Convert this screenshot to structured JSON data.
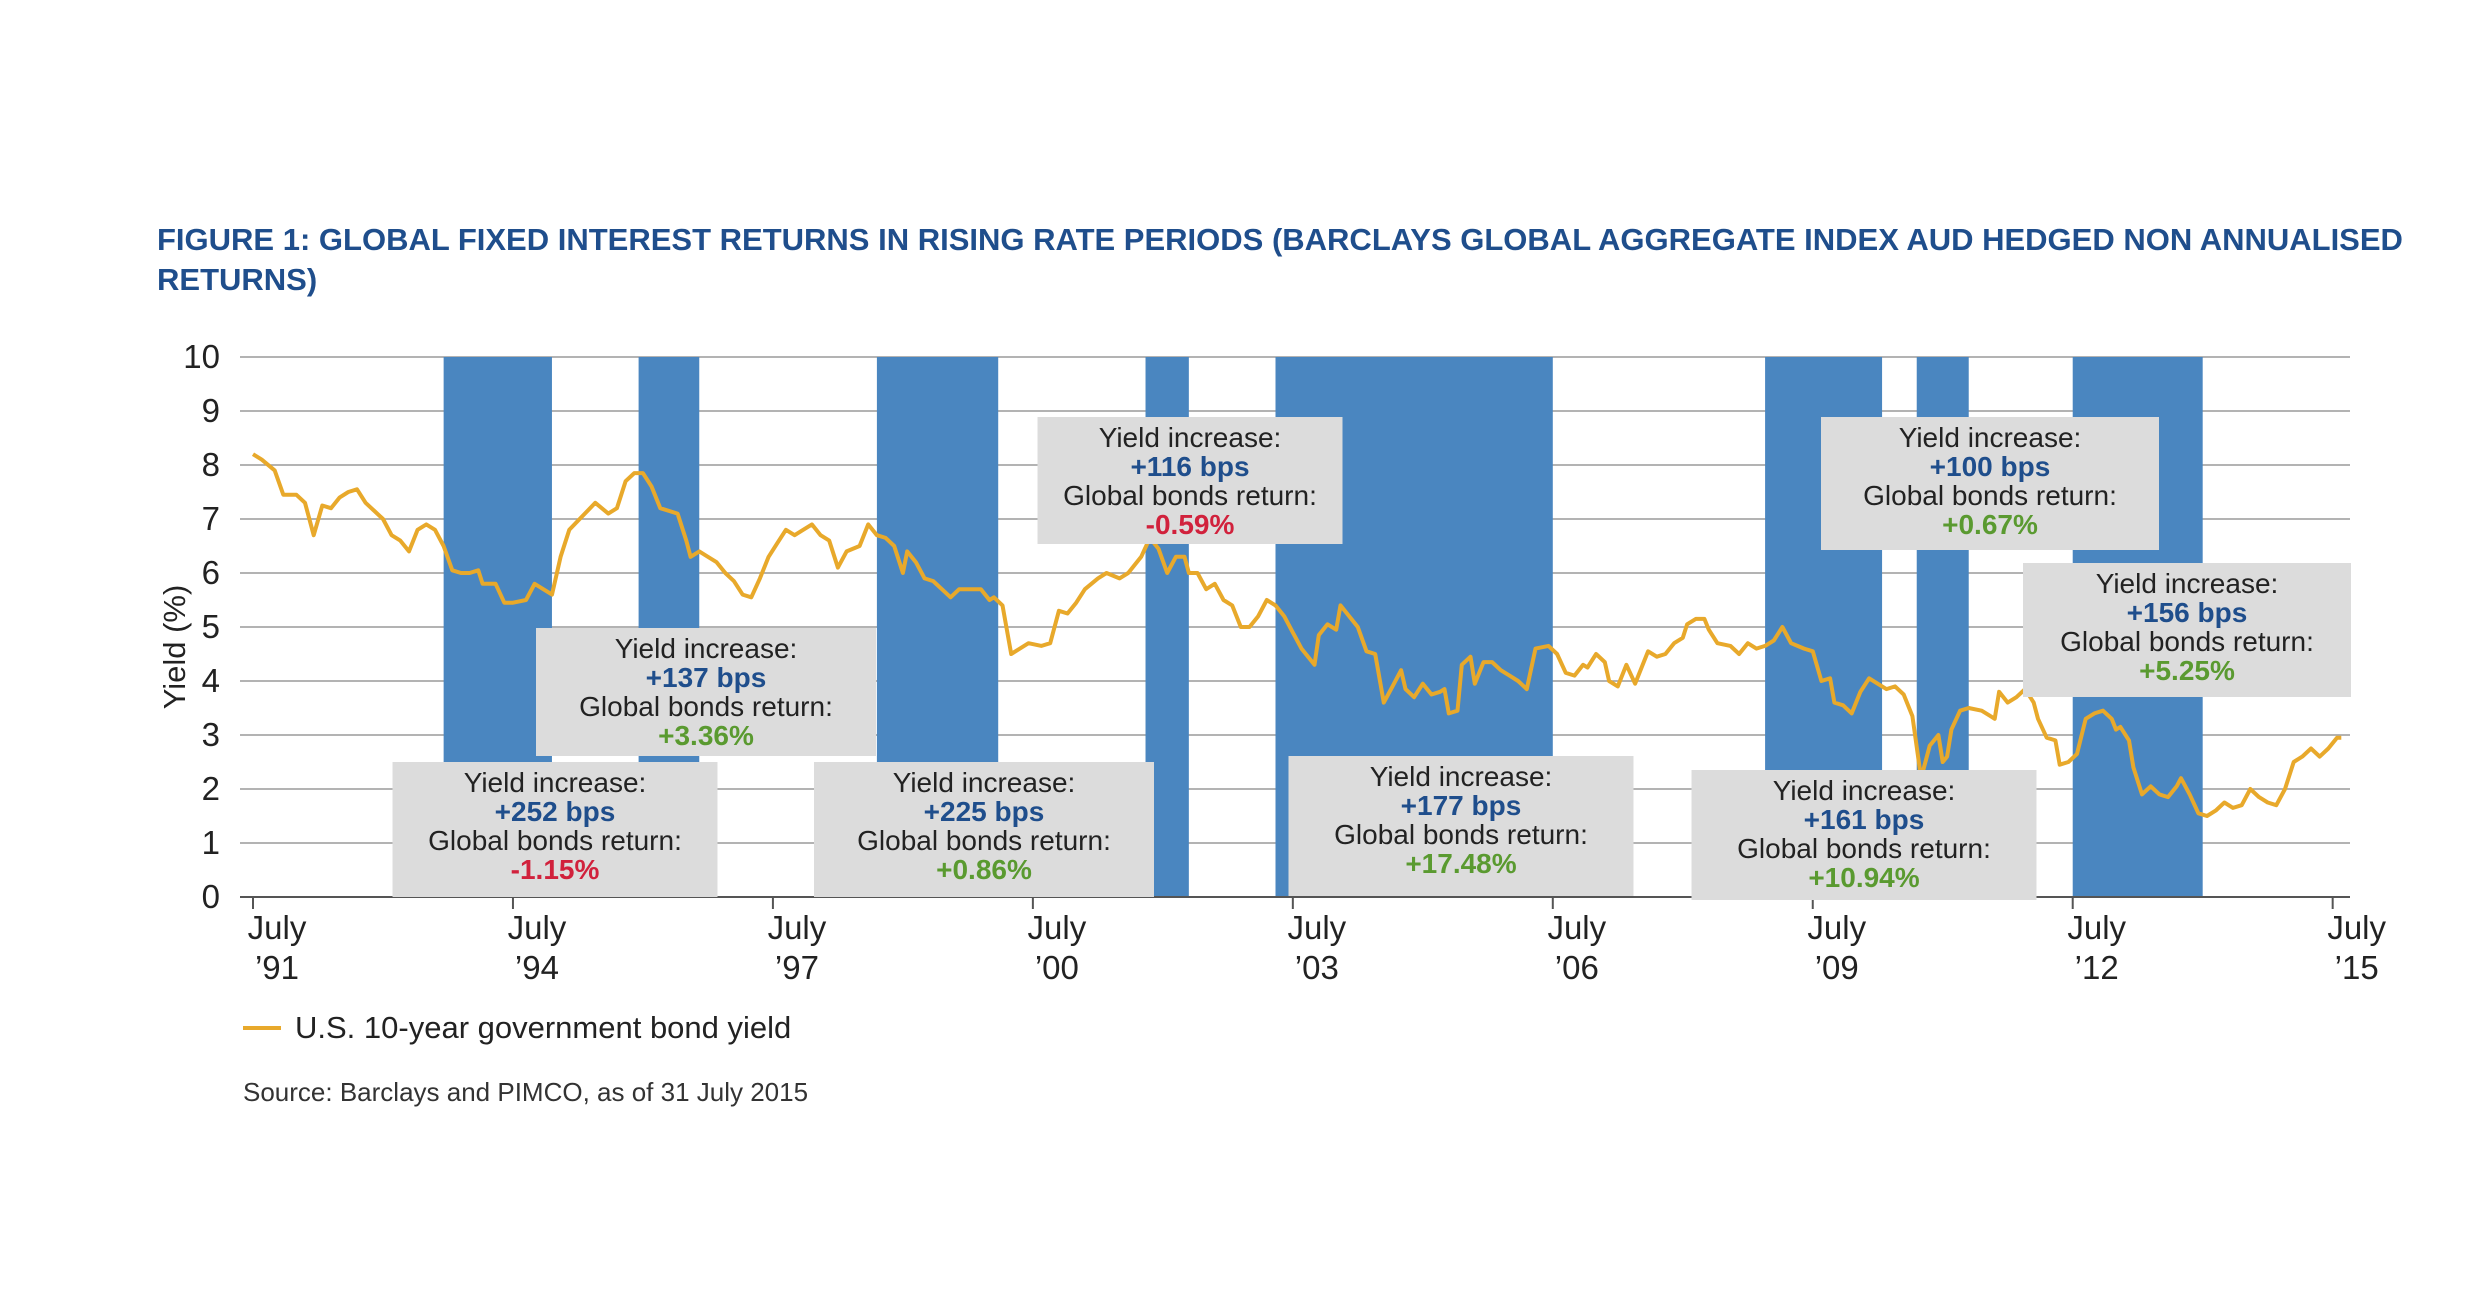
{
  "title": "FIGURE 1: GLOBAL FIXED INTEREST RETURNS IN RISING RATE PERIODS (BARCLAYS GLOBAL AGGREGATE INDEX AUD HEDGED NON ANNUALISED RETURNS)",
  "legend_label": "U.S. 10-year government bond yield",
  "source": "Source: Barclays and PIMCO, as of 31 July 2015",
  "colors": {
    "line": "#e8a92b",
    "band": "#4a86c0",
    "box": "#dcdcdc",
    "bps": "#1f4e8c",
    "positive": "#5a9a30",
    "negative": "#d1213c",
    "grid": "#9a9a9a"
  },
  "chart_data": {
    "type": "line",
    "ylabel": "Yield (%)",
    "xlabel": "",
    "ylim": [
      0,
      10
    ],
    "yticks": [
      0,
      1,
      2,
      3,
      4,
      5,
      6,
      7,
      8,
      9,
      10
    ],
    "xlim": [
      1991.5,
      2015.6
    ],
    "xticks": [
      {
        "x": 1991.5,
        "line1": "July",
        "line2": "’91"
      },
      {
        "x": 1994.5,
        "line1": "July",
        "line2": "’94"
      },
      {
        "x": 1997.5,
        "line1": "July",
        "line2": "’97"
      },
      {
        "x": 2000.5,
        "line1": "July",
        "line2": "’00"
      },
      {
        "x": 2003.5,
        "line1": "July",
        "line2": "’03"
      },
      {
        "x": 2006.5,
        "line1": "July",
        "line2": "’06"
      },
      {
        "x": 2009.5,
        "line1": "July",
        "line2": "’09"
      },
      {
        "x": 2012.5,
        "line1": "July",
        "line2": "’12"
      },
      {
        "x": 2015.5,
        "line1": "July",
        "line2": "’15"
      }
    ],
    "grid": true,
    "legend": "bottom-left",
    "rising_rate_periods": [
      {
        "start": 1993.7,
        "end": 1994.95,
        "yield_increase": "+252 bps",
        "global_bonds_return": "-1.15%",
        "sign": "negative"
      },
      {
        "start": 1995.95,
        "end": 1996.65,
        "yield_increase": "+137 bps",
        "global_bonds_return": "+3.36%",
        "sign": "positive"
      },
      {
        "start": 1998.7,
        "end": 2000.1,
        "yield_increase": "+225 bps",
        "global_bonds_return": "+0.86%",
        "sign": "positive"
      },
      {
        "start": 2001.8,
        "end": 2002.3,
        "yield_increase": "+116 bps",
        "global_bonds_return": "-0.59%",
        "sign": "negative"
      },
      {
        "start": 2003.3,
        "end": 2006.5,
        "yield_increase": "+177 bps",
        "global_bonds_return": "+17.48%",
        "sign": "positive"
      },
      {
        "start": 2008.95,
        "end": 2010.3,
        "yield_increase": "+161 bps",
        "global_bonds_return": "+10.94%",
        "sign": "positive"
      },
      {
        "start": 2010.7,
        "end": 2011.3,
        "yield_increase": "+100 bps",
        "global_bonds_return": "+0.67%",
        "sign": "positive"
      },
      {
        "start": 2012.5,
        "end": 2014.0,
        "yield_increase": "+156 bps",
        "global_bonds_return": "+5.25%",
        "sign": "positive"
      }
    ],
    "annotation_labels": {
      "yield_increase": "Yield increase:",
      "global_bonds_return": "Global bonds return:"
    },
    "series": [
      {
        "name": "U.S. 10-year government bond yield",
        "points": [
          [
            1991.5,
            8.2
          ],
          [
            1991.6,
            8.1
          ],
          [
            1991.75,
            7.9
          ],
          [
            1991.85,
            7.45
          ],
          [
            1992.0,
            7.45
          ],
          [
            1992.1,
            7.3
          ],
          [
            1992.2,
            6.7
          ],
          [
            1992.3,
            7.25
          ],
          [
            1992.4,
            7.2
          ],
          [
            1992.5,
            7.4
          ],
          [
            1992.6,
            7.5
          ],
          [
            1992.7,
            7.55
          ],
          [
            1992.8,
            7.3
          ],
          [
            1992.9,
            7.15
          ],
          [
            1993.0,
            7.0
          ],
          [
            1993.1,
            6.7
          ],
          [
            1993.2,
            6.6
          ],
          [
            1993.3,
            6.4
          ],
          [
            1993.4,
            6.8
          ],
          [
            1993.5,
            6.9
          ],
          [
            1993.6,
            6.8
          ],
          [
            1993.7,
            6.5
          ],
          [
            1993.8,
            6.05
          ],
          [
            1993.9,
            6.0
          ],
          [
            1994.0,
            6.0
          ],
          [
            1994.1,
            6.05
          ],
          [
            1994.15,
            5.8
          ],
          [
            1994.3,
            5.8
          ],
          [
            1994.4,
            5.45
          ],
          [
            1994.5,
            5.45
          ],
          [
            1994.65,
            5.5
          ],
          [
            1994.75,
            5.8
          ],
          [
            1994.85,
            5.7
          ],
          [
            1994.95,
            5.6
          ],
          [
            1995.05,
            6.3
          ],
          [
            1995.15,
            6.8
          ],
          [
            1995.3,
            7.05
          ],
          [
            1995.45,
            7.3
          ],
          [
            1995.6,
            7.1
          ],
          [
            1995.7,
            7.2
          ],
          [
            1995.8,
            7.7
          ],
          [
            1995.9,
            7.85
          ],
          [
            1996.0,
            7.85
          ],
          [
            1996.1,
            7.6
          ],
          [
            1996.2,
            7.2
          ],
          [
            1996.3,
            7.15
          ],
          [
            1996.4,
            7.1
          ],
          [
            1996.5,
            6.6
          ],
          [
            1996.55,
            6.3
          ],
          [
            1996.65,
            6.4
          ],
          [
            1996.75,
            6.3
          ],
          [
            1996.85,
            6.2
          ],
          [
            1996.95,
            6.0
          ],
          [
            1997.05,
            5.85
          ],
          [
            1997.15,
            5.6
          ],
          [
            1997.25,
            5.55
          ],
          [
            1997.35,
            5.9
          ],
          [
            1997.45,
            6.3
          ],
          [
            1997.55,
            6.55
          ],
          [
            1997.65,
            6.8
          ],
          [
            1997.75,
            6.7
          ],
          [
            1997.85,
            6.8
          ],
          [
            1997.95,
            6.9
          ],
          [
            1998.05,
            6.7
          ],
          [
            1998.15,
            6.6
          ],
          [
            1998.25,
            6.1
          ],
          [
            1998.35,
            6.4
          ],
          [
            1998.5,
            6.5
          ],
          [
            1998.6,
            6.9
          ],
          [
            1998.7,
            6.7
          ],
          [
            1998.8,
            6.65
          ],
          [
            1998.9,
            6.5
          ],
          [
            1999.0,
            6.0
          ],
          [
            1999.05,
            6.4
          ],
          [
            1999.15,
            6.2
          ],
          [
            1999.25,
            5.9
          ],
          [
            1999.35,
            5.85
          ],
          [
            1999.45,
            5.7
          ],
          [
            1999.55,
            5.55
          ],
          [
            1999.65,
            5.7
          ],
          [
            1999.8,
            5.7
          ],
          [
            1999.9,
            5.7
          ],
          [
            2000.0,
            5.5
          ],
          [
            2000.05,
            5.55
          ],
          [
            2000.15,
            5.4
          ],
          [
            2000.25,
            4.5
          ],
          [
            2000.35,
            4.6
          ],
          [
            2000.45,
            4.7
          ],
          [
            2000.6,
            4.65
          ],
          [
            2000.7,
            4.7
          ],
          [
            2000.8,
            5.3
          ],
          [
            2000.9,
            5.25
          ],
          [
            2001.0,
            5.45
          ],
          [
            2001.1,
            5.7
          ],
          [
            2001.25,
            5.9
          ],
          [
            2001.35,
            6.0
          ],
          [
            2001.5,
            5.9
          ],
          [
            2001.6,
            6.0
          ],
          [
            2001.75,
            6.3
          ],
          [
            2001.85,
            6.65
          ],
          [
            2001.95,
            6.45
          ],
          [
            2002.05,
            6.0
          ],
          [
            2002.15,
            6.3
          ],
          [
            2002.25,
            6.3
          ],
          [
            2002.3,
            6.0
          ],
          [
            2002.4,
            6.0
          ],
          [
            2002.5,
            5.7
          ],
          [
            2002.6,
            5.8
          ],
          [
            2002.7,
            5.5
          ],
          [
            2002.8,
            5.4
          ],
          [
            2002.9,
            5.0
          ],
          [
            2003.0,
            5.0
          ],
          [
            2003.1,
            5.2
          ],
          [
            2003.2,
            5.5
          ],
          [
            2003.3,
            5.4
          ],
          [
            2003.4,
            5.2
          ],
          [
            2003.5,
            4.9
          ],
          [
            2003.6,
            4.6
          ],
          [
            2003.75,
            4.3
          ],
          [
            2003.8,
            4.85
          ],
          [
            2003.9,
            5.05
          ],
          [
            2004.0,
            4.95
          ],
          [
            2004.05,
            5.4
          ],
          [
            2004.15,
            5.2
          ],
          [
            2004.25,
            5.0
          ],
          [
            2004.35,
            4.55
          ],
          [
            2004.45,
            4.5
          ],
          [
            2004.55,
            3.6
          ],
          [
            2004.65,
            3.9
          ],
          [
            2004.75,
            4.2
          ],
          [
            2004.8,
            3.85
          ],
          [
            2004.9,
            3.7
          ],
          [
            2005.0,
            3.95
          ],
          [
            2005.1,
            3.75
          ],
          [
            2005.2,
            3.8
          ],
          [
            2005.25,
            3.85
          ],
          [
            2005.3,
            3.4
          ],
          [
            2005.4,
            3.45
          ],
          [
            2005.45,
            4.3
          ],
          [
            2005.55,
            4.45
          ],
          [
            2005.6,
            3.95
          ],
          [
            2005.7,
            4.35
          ],
          [
            2005.8,
            4.35
          ],
          [
            2005.9,
            4.2
          ],
          [
            2006.0,
            4.1
          ],
          [
            2006.1,
            4.0
          ],
          [
            2006.2,
            3.85
          ],
          [
            2006.3,
            4.6
          ],
          [
            2006.45,
            4.65
          ],
          [
            2006.55,
            4.5
          ],
          [
            2006.65,
            4.15
          ],
          [
            2006.75,
            4.1
          ],
          [
            2006.85,
            4.3
          ],
          [
            2006.9,
            4.25
          ],
          [
            2007.0,
            4.5
          ],
          [
            2007.1,
            4.35
          ],
          [
            2007.15,
            4.0
          ],
          [
            2007.25,
            3.9
          ],
          [
            2007.35,
            4.3
          ],
          [
            2007.45,
            3.95
          ],
          [
            2007.6,
            4.55
          ],
          [
            2007.7,
            4.45
          ],
          [
            2007.8,
            4.5
          ],
          [
            2007.9,
            4.7
          ],
          [
            2008.0,
            4.8
          ],
          [
            2008.05,
            5.05
          ],
          [
            2008.15,
            5.15
          ],
          [
            2008.25,
            5.15
          ],
          [
            2008.3,
            4.95
          ],
          [
            2008.4,
            4.7
          ],
          [
            2008.55,
            4.65
          ],
          [
            2008.65,
            4.5
          ],
          [
            2008.75,
            4.7
          ],
          [
            2008.85,
            4.6
          ],
          [
            2008.95,
            4.65
          ],
          [
            2009.05,
            4.75
          ],
          [
            2009.15,
            5.0
          ],
          [
            2009.25,
            4.7
          ],
          [
            2009.4,
            4.6
          ],
          [
            2009.5,
            4.55
          ],
          [
            2009.6,
            4.0
          ],
          [
            2009.7,
            4.05
          ],
          [
            2009.75,
            3.6
          ],
          [
            2009.85,
            3.55
          ],
          [
            2009.95,
            3.4
          ],
          [
            2010.05,
            3.8
          ],
          [
            2010.15,
            4.05
          ],
          [
            2010.25,
            3.95
          ],
          [
            2010.35,
            3.85
          ],
          [
            2010.45,
            3.9
          ],
          [
            2010.55,
            3.75
          ],
          [
            2010.65,
            3.35
          ],
          [
            2010.75,
            2.2
          ],
          [
            2010.85,
            2.8
          ],
          [
            2010.95,
            3.0
          ],
          [
            2011.0,
            2.5
          ],
          [
            2011.05,
            2.6
          ],
          [
            2011.1,
            3.1
          ],
          [
            2011.2,
            3.45
          ],
          [
            2011.3,
            3.5
          ],
          [
            2011.45,
            3.45
          ],
          [
            2011.55,
            3.35
          ],
          [
            2011.6,
            3.3
          ],
          [
            2011.65,
            3.8
          ],
          [
            2011.75,
            3.6
          ],
          [
            2011.85,
            3.7
          ],
          [
            2011.95,
            3.85
          ],
          [
            2012.05,
            3.6
          ],
          [
            2012.1,
            3.3
          ],
          [
            2012.2,
            2.95
          ],
          [
            2012.3,
            2.9
          ],
          [
            2012.35,
            2.45
          ],
          [
            2012.45,
            2.5
          ],
          [
            2012.55,
            2.65
          ],
          [
            2012.65,
            3.3
          ],
          [
            2012.75,
            3.4
          ],
          [
            2012.85,
            3.45
          ],
          [
            2012.95,
            3.3
          ],
          [
            2013.0,
            3.1
          ],
          [
            2013.05,
            3.15
          ],
          [
            2013.15,
            2.9
          ],
          [
            2013.2,
            2.4
          ],
          [
            2013.3,
            1.9
          ],
          [
            2013.4,
            2.05
          ],
          [
            2013.5,
            1.9
          ],
          [
            2013.6,
            1.85
          ],
          [
            2013.7,
            2.05
          ],
          [
            2013.75,
            2.2
          ],
          [
            2013.85,
            1.9
          ],
          [
            2013.95,
            1.55
          ],
          [
            2014.05,
            1.5
          ],
          [
            2014.15,
            1.6
          ],
          [
            2014.25,
            1.75
          ],
          [
            2014.35,
            1.65
          ],
          [
            2014.45,
            1.7
          ],
          [
            2014.55,
            2.0
          ],
          [
            2014.65,
            1.85
          ],
          [
            2014.75,
            1.75
          ],
          [
            2014.85,
            1.7
          ],
          [
            2014.95,
            2.0
          ],
          [
            2015.05,
            2.5
          ],
          [
            2015.15,
            2.6
          ],
          [
            2015.25,
            2.75
          ],
          [
            2015.35,
            2.6
          ],
          [
            2015.45,
            2.75
          ],
          [
            2015.55,
            2.95
          ],
          [
            2015.6,
            2.95
          ]
        ]
      }
    ]
  }
}
